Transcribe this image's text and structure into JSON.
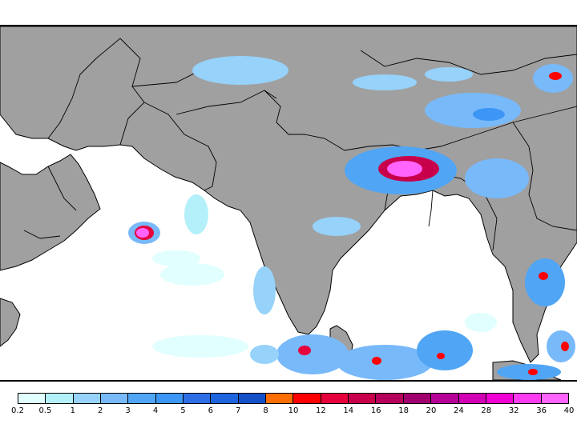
{
  "map": {
    "land_color": "#a0a0a0",
    "water_color": "#ffffff",
    "border_color": "#000000"
  },
  "legend": {
    "colors": [
      "#e0fffe",
      "#b4f0fa",
      "#96d2fa",
      "#78b9fa",
      "#50a5f5",
      "#3c96f5",
      "#2d6ee6",
      "#1e64dc",
      "#1450c8",
      "#ff6e00",
      "#ff0000",
      "#e6003c",
      "#c8004b",
      "#b4005a",
      "#a0006e",
      "#b40096",
      "#d200b4",
      "#f000d2",
      "#ff3cf0",
      "#ff64ff"
    ],
    "labels": [
      "0.2",
      "0.5",
      "1",
      "2",
      "3",
      "4",
      "5",
      "6",
      "7",
      "8",
      "10",
      "12",
      "14",
      "16",
      "18",
      "20",
      "24",
      "28",
      "32",
      "36",
      "40"
    ]
  }
}
